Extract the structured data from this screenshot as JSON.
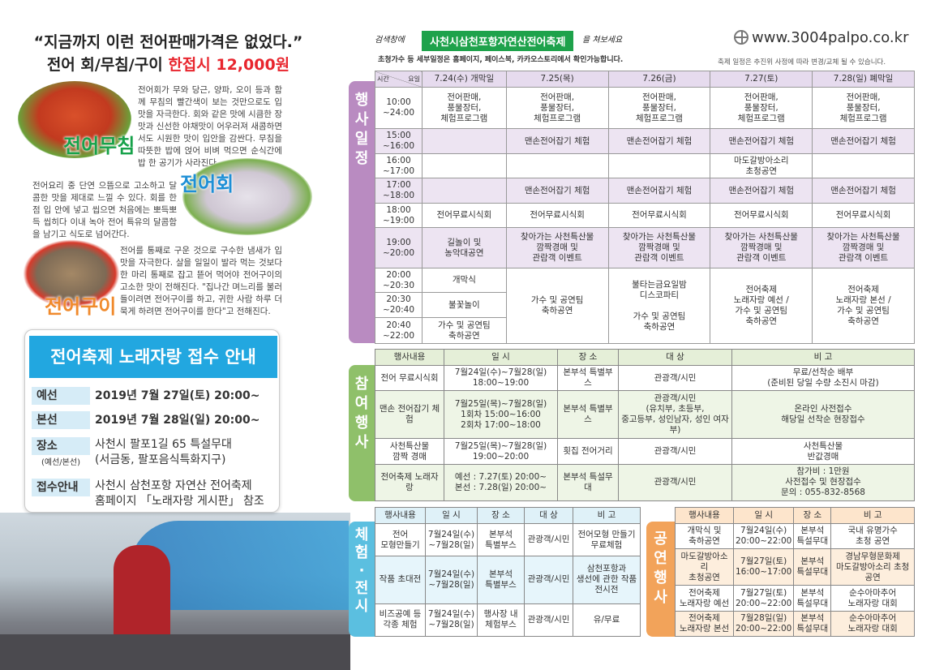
{
  "left": {
    "headline1": "“지금까지 이런 전어판매가격은 없었다.”",
    "headline2_a": "전어 회/무침/구이 ",
    "headline2_b": "한접시 12,000원",
    "muchim_label": "전어무침",
    "muchim_text": "전어회가 무와 당근, 양파, 오이 등과 함께 무침의 빨간색이 보는 것만으로도 입맛을 자극한다. 회와 같은 맛에 시큼한 장맛과 신선한 야채맛이 어우러져 새콤하면서도 시원한 맛이 입안을 감싼다. 무침을 따뜻한 밥에 얹어 비벼 먹으면 순식간에 밥 한 공기가 사라진다.",
    "hoe_label": "전어회",
    "hoe_text": "전어요리 중 단연 으뜸으로 고소하고 달콤한 맛을 제대로 느낄 수 있다. 회를 한 점 입 안에 넣고 씹으면 처음에는 뽀득뽀득 씹히다 이내 녹아 전어 특유의 달콤함을 남기고 식도로 넘어간다.",
    "gui_label": "전어구이",
    "gui_text": "전어를 통째로 구운 것으로 구수한 냄새가 입맛을 자극한다. 살을 일일이 발라 먹는 것보다 한 마리 통째로 잡고 뜯어 먹어야 전어구이의 고소한 맛이 전해진다. \"집나간 며느리를 불러 들이려면 전어구이를 하고, 귀한 사람 하루 더 묵게 하려면 전어구이를 한다\"고 전해진다."
  },
  "contest": {
    "title": "전어축제 노래자랑 접수 안내",
    "rows": [
      {
        "k": "예선",
        "v": "2019년 7월 27일(토) 20:00~"
      },
      {
        "k": "본선",
        "v": "2019년 7월 28일(일) 20:00~"
      },
      {
        "k": "장소",
        "sub": "(예선/본선)",
        "v": "사천시 팔포1길 65 특설무대\n(서금동, 팔포음식특화지구)"
      },
      {
        "k": "접수안내",
        "v": "사천시 삼천포항 자연산 전어축제\n홈페이지 「노래자랑 게시판」 참조"
      }
    ]
  },
  "header": {
    "search_prefix": "검색창에",
    "search_term": "사천시삼천포항자연산전어축제",
    "search_suffix": "을 쳐보세요",
    "note": "초청가수 등 세부일정은 홈페이지, 페이스북, 카카오스토리에서 확인가능합니다.",
    "url": "www.3004palpo.co.kr",
    "disclaimer": "축제 일정은 추진위 사정에 따라 변경/교체 될 수 있습니다."
  },
  "colors": {
    "schedule": "#b98bc1",
    "participation": "#8fc06a",
    "experience": "#5bbfe0",
    "performance": "#f2a35a",
    "search_bar": "#1ea24b",
    "accent_red": "#e8262e"
  },
  "schedule": {
    "label": "행사일정",
    "corner_time": "시간",
    "corner_day": "요일",
    "headers": [
      "7.24(수) 개막일",
      "7.25(목)",
      "7.26(금)",
      "7.27(토)",
      "7.28(일) 폐막일"
    ],
    "rows": [
      {
        "time": "10:00\n~24:00",
        "cells": [
          {
            "t": "전어판매,\n풍물장터,\n체험프로그램"
          },
          {
            "t": "전어판매,\n풍물장터,\n체험프로그램"
          },
          {
            "t": "전어판매,\n풍물장터,\n체험프로그램"
          },
          {
            "t": "전어판매,\n풍물장터,\n체험프로그램"
          },
          {
            "t": "전어판매,\n풍물장터,\n체험프로그램"
          }
        ]
      },
      {
        "time": "15:00\n~16:00",
        "cells": [
          {
            "t": ""
          },
          {
            "t": "맨손전어잡기 체험"
          },
          {
            "t": "맨손전어잡기 체험"
          },
          {
            "t": "맨손전어잡기 체험"
          },
          {
            "t": "맨손전어잡기 체험"
          }
        ]
      },
      {
        "time": "16:00\n~17:00",
        "cells": [
          {
            "t": ""
          },
          {
            "t": ""
          },
          {
            "t": ""
          },
          {
            "t": "마도갈방아소리\n초청공연"
          },
          {
            "t": ""
          }
        ]
      },
      {
        "time": "17:00\n~18:00",
        "cells": [
          {
            "t": ""
          },
          {
            "t": "맨손전어잡기 체험"
          },
          {
            "t": "맨손전어잡기 체험"
          },
          {
            "t": "맨손전어잡기 체험"
          },
          {
            "t": "맨손전어잡기 체험"
          }
        ]
      },
      {
        "time": "18:00\n~19:00",
        "cells": [
          {
            "t": "전어무료시식회"
          },
          {
            "t": "전어무료시식회"
          },
          {
            "t": "전어무료시식회"
          },
          {
            "t": "전어무료시식회"
          },
          {
            "t": "전어무료시식회"
          }
        ]
      },
      {
        "time": "19:00\n~20:00",
        "cells": [
          {
            "t": "길놀이 및\n농악대공연"
          },
          {
            "t": "찾아가는 사천특산물\n깜짝경매 및\n관람객 이벤트"
          },
          {
            "t": "찾아가는 사천특산물\n깜짝경매 및\n관람객 이벤트"
          },
          {
            "t": "찾아가는 사천특산물\n깜짝경매 및\n관람객 이벤트"
          },
          {
            "t": "찾아가는 사천특산물\n깜짝경매 및\n관람객 이벤트"
          }
        ]
      },
      {
        "time": "20:00\n~20:30",
        "cells": [
          {
            "t": "개막식"
          },
          {
            "t": "가수 및 공연팀\n축하공연",
            "rs": 3
          },
          {
            "t": "불타는금요일밤\n디스코파티\n\n가수 및 공연팀\n축하공연",
            "rs": 3
          },
          {
            "t": "전어축제\n노래자랑 예선 /\n가수 및 공연팀\n축하공연",
            "rs": 3
          },
          {
            "t": "전어축제\n노래자랑 본선 /\n가수 및 공연팀\n축하공연",
            "rs": 3
          }
        ]
      },
      {
        "time": "20:30\n~20:40",
        "cells": [
          {
            "t": "불꽃놀이"
          }
        ]
      },
      {
        "time": "20:40\n~22:00",
        "cells": [
          {
            "t": "가수 및 공연팀\n축하공연"
          }
        ]
      }
    ]
  },
  "participation": {
    "label": "참여행사",
    "headers": [
      "행사내용",
      "일 시",
      "장 소",
      "대 상",
      "비 고"
    ],
    "rows": [
      [
        "전어 무료시식회",
        "7월24일(수)~7월28(일)\n18:00~19:00",
        "본부석 특별부스",
        "관광객/시민",
        "무료/선착순 배부\n(준비된 당일 수량 소진시 마감)"
      ],
      [
        "맨손 전어잡기 체험",
        "7월25일(목)~7월28(일)\n1회차 15:00~16:00\n2회차 17:00~18:00",
        "본부석 특별부스",
        "관광객/시민\n(유치부, 초등부,\n중고등부, 성인남자, 성인 여자부)",
        "온라인 사전접수\n해당일 선착순 현장접수"
      ],
      [
        "사천특산물\n깜짝 경매",
        "7월25일(목)~7월28(일)\n19:00~20:00",
        "횟집 전어거리",
        "관광객/시민",
        "사천특산물\n반값경매"
      ],
      [
        "전어축제 노래자랑",
        "예선 : 7.27(토) 20:00~\n본선 : 7.28(일) 20:00~",
        "본부석 특설무대",
        "관광객/시민",
        "참가비 : 1만원\n사전접수 및 현장접수\n문의 : 055-832-8568"
      ]
    ]
  },
  "experience": {
    "label": "체험·전시",
    "headers": [
      "행사내용",
      "일 시",
      "장 소",
      "대 상",
      "비 고"
    ],
    "rows": [
      [
        "전어\n모형만들기",
        "7월24일(수)\n~7월28(일)",
        "본부석\n특별부스",
        "관광객/시민",
        "전어모형 만들기\n무료체험"
      ],
      [
        "작품 초대전",
        "7월24일(수)\n~7월28(일)",
        "본부석\n특별부스",
        "관광객/시민",
        "삼천포항과\n생선에 관한 작품\n전시전"
      ],
      [
        "비즈공예 등\n각종 체험",
        "7월24일(수)\n~7월28(일)",
        "행사장 내\n체험부스",
        "관광객/시민",
        "유/무료"
      ]
    ]
  },
  "performance": {
    "label": "공연행사",
    "headers": [
      "행사내용",
      "일 시",
      "장 소",
      "비 고"
    ],
    "rows": [
      [
        "개막식 및\n축하공연",
        "7월24일(수)\n20:00~22:00",
        "본부석\n특설무대",
        "국내 유명가수\n초청 공연"
      ],
      [
        "마도갈방아소리\n초청공연",
        "7월27일(토)\n16:00~17:00",
        "본부석\n특설무대",
        "경남무형문화제\n마도갈방아소리 초청공연"
      ],
      [
        "전어축제\n노래자랑 예선",
        "7월27일(토)\n20:00~22:00",
        "본부석\n특설무대",
        "순수아마추어\n노래자랑 대회"
      ],
      [
        "전어축제\n노래자랑 본선",
        "7월28일(일)\n20:00~22:00",
        "본부석\n특설무대",
        "순수아마추어\n노래자랑 대회"
      ]
    ]
  }
}
